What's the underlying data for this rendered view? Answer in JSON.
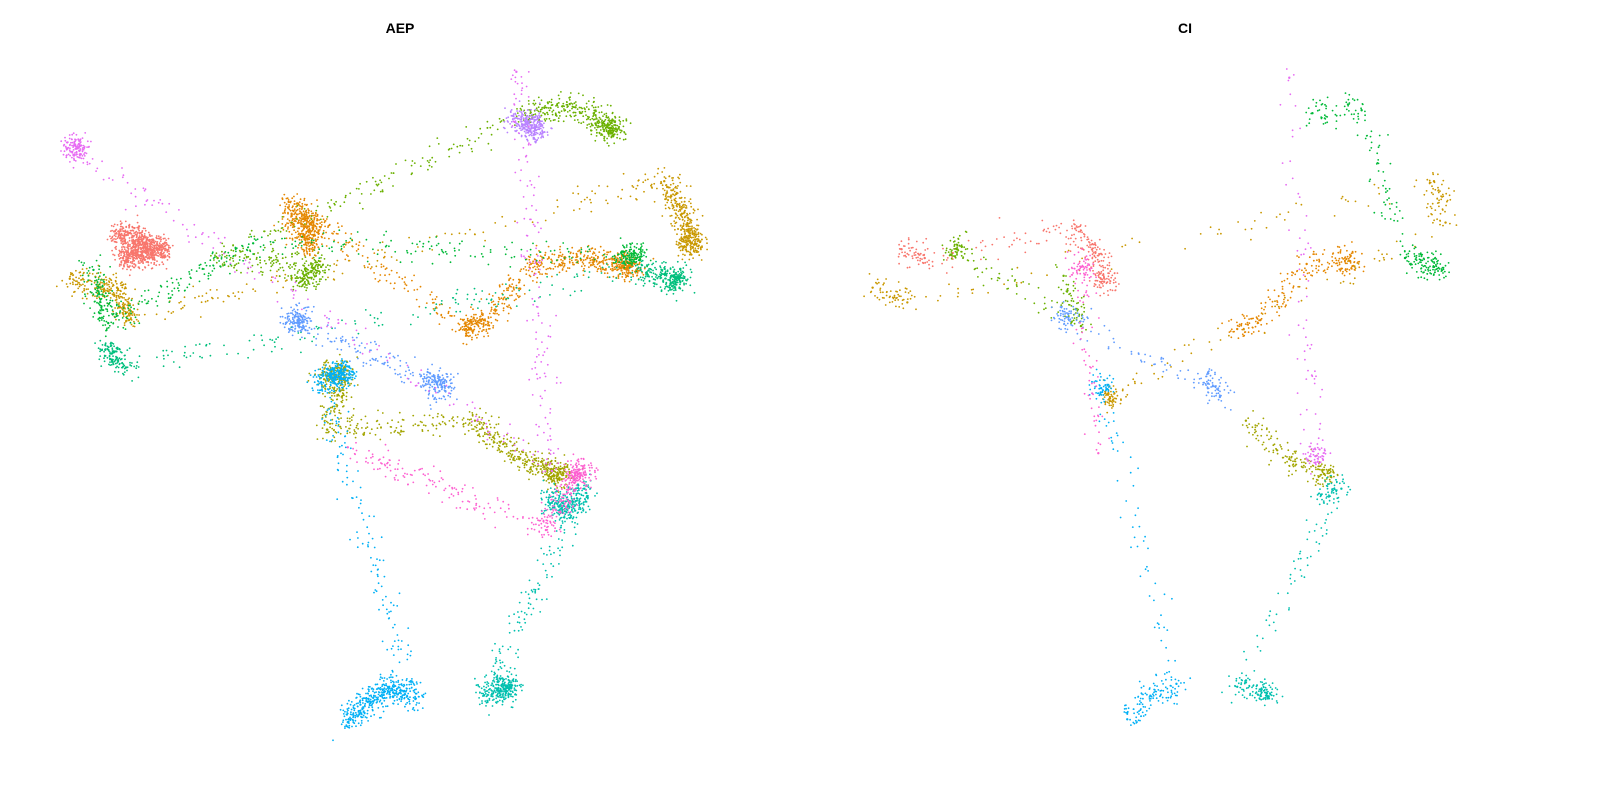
{
  "panels": [
    {
      "title": "AEP"
    },
    {
      "title": "CI"
    }
  ],
  "chart_data": [
    {
      "type": "scatter",
      "title": "AEP",
      "xlabel": "",
      "ylabel": "",
      "axes": "none",
      "grid": false,
      "legend": "none",
      "colors": [
        "#F8766D",
        "#E58700",
        "#C99800",
        "#A3A500",
        "#6BB100",
        "#00BA38",
        "#00BF7D",
        "#00C0AF",
        "#00BCD8",
        "#00B0F6",
        "#619CFF",
        "#B983FF",
        "#E76BF3",
        "#FD61D1"
      ],
      "clusters": [
        {
          "color": "#F8766D",
          "points": [
            [
              -13.5,
              6.2
            ],
            [
              -12.9,
              6.0
            ],
            [
              -12.4,
              5.8
            ],
            [
              -13.2,
              5.3
            ],
            [
              -12.6,
              5.4
            ],
            [
              -12.0,
              5.6
            ]
          ]
        },
        {
          "color": "#E58700",
          "points": [
            [
              -7.5,
              6.8
            ],
            [
              -6.8,
              6.5
            ],
            [
              -6.9,
              5.6
            ],
            [
              -7.6,
              7.2
            ],
            [
              -1.6,
              2.9
            ],
            [
              -1.0,
              3.2
            ],
            [
              0.8,
              5.1
            ],
            [
              2.5,
              5.3
            ],
            [
              3.9,
              5.0
            ]
          ]
        },
        {
          "color": "#C99800",
          "points": [
            [
              -15.0,
              4.6
            ],
            [
              -13.4,
              4.3
            ],
            [
              -13.0,
              3.2
            ],
            [
              5.1,
              7.9
            ],
            [
              5.7,
              6.8
            ],
            [
              6.0,
              5.8
            ]
          ]
        },
        {
          "color": "#A3A500",
          "points": [
            [
              -6.4,
              1.2
            ],
            [
              -5.7,
              1.6
            ],
            [
              -6.3,
              -0.5
            ],
            [
              -1.3,
              -0.2
            ],
            [
              0.2,
              -1.5
            ],
            [
              1.5,
              -2.0
            ]
          ]
        },
        {
          "color": "#6BB100",
          "points": [
            [
              -7.2,
              4.5
            ],
            [
              -6.5,
              5.0
            ],
            [
              -10.0,
              5.3
            ],
            [
              0.4,
              10.2
            ],
            [
              2.1,
              10.4
            ],
            [
              3.3,
              9.7
            ]
          ]
        },
        {
          "color": "#00BA38",
          "points": [
            [
              -14.2,
              4.9
            ],
            [
              -13.7,
              3.1
            ],
            [
              -8.8,
              5.8
            ],
            [
              4.0,
              5.4
            ]
          ]
        },
        {
          "color": "#00BF7D",
          "points": [
            [
              -13.8,
              2.2
            ],
            [
              -13.1,
              1.6
            ],
            [
              4.3,
              4.9
            ],
            [
              5.5,
              4.6
            ]
          ]
        },
        {
          "color": "#00C0AF",
          "points": [
            [
              1.2,
              -2.8
            ],
            [
              1.8,
              -3.3
            ],
            [
              2.4,
              -2.5
            ],
            [
              -1.0,
              -9.5
            ],
            [
              -0.2,
              -9.2
            ]
          ]
        },
        {
          "color": "#00B0F6",
          "points": [
            [
              -5.6,
              -10.4
            ],
            [
              -4.9,
              -9.7
            ],
            [
              -4.2,
              -9.2
            ],
            [
              -3.3,
              -9.6
            ],
            [
              -6.5,
              1.1
            ],
            [
              -5.8,
              1.4
            ]
          ]
        },
        {
          "color": "#619CFF",
          "points": [
            [
              -2.7,
              1.3
            ],
            [
              -2.3,
              0.8
            ],
            [
              -7.3,
              3.2
            ]
          ]
        },
        {
          "color": "#B983FF",
          "points": [
            [
              0.0,
              10.1
            ],
            [
              0.7,
              9.7
            ]
          ]
        },
        {
          "color": "#E76BF3",
          "points": [
            [
              0.1,
              11.6
            ],
            [
              1.3,
              -1.9
            ],
            [
              -14.8,
              9.0
            ]
          ]
        },
        {
          "color": "#FD61D1",
          "points": [
            [
              -5.6,
              -1.1
            ],
            [
              1.1,
              -3.9
            ],
            [
              2.2,
              -2.0
            ]
          ]
        }
      ]
    },
    {
      "type": "scatter",
      "title": "CI",
      "xlabel": "",
      "ylabel": "",
      "axes": "none",
      "grid": false,
      "legend": "none",
      "colors": [
        "#F8766D",
        "#E58700",
        "#C99800",
        "#A3A500",
        "#6BB100",
        "#00BA38",
        "#00BF7D",
        "#00C0AF",
        "#00BCD8",
        "#00B0F6",
        "#619CFF",
        "#B983FF",
        "#E76BF3",
        "#FD61D1"
      ],
      "clusters": [
        {
          "color": "#F8766D",
          "points": [
            [
              -13.2,
              5.6
            ],
            [
              -12.4,
              5.3
            ],
            [
              -7.2,
              6.3
            ],
            [
              -6.5,
              5.5
            ],
            [
              -6.2,
              4.5
            ]
          ]
        },
        {
          "color": "#E58700",
          "points": [
            [
              -1.6,
              2.9
            ],
            [
              -0.8,
              3.2
            ],
            [
              0.8,
              5.1
            ],
            [
              2.3,
              5.2
            ]
          ]
        },
        {
          "color": "#C99800",
          "points": [
            [
              -14.2,
              4.3
            ],
            [
              -13.0,
              3.8
            ],
            [
              5.2,
              7.9
            ],
            [
              5.6,
              6.5
            ],
            [
              -6.0,
              0.6
            ]
          ]
        },
        {
          "color": "#A3A500",
          "points": [
            [
              -1.3,
              -0.2
            ],
            [
              0.2,
              -1.5
            ],
            [
              1.4,
              -2.0
            ]
          ]
        },
        {
          "color": "#6BB100",
          "points": [
            [
              -7.6,
              4.7
            ],
            [
              -7.0,
              3.0
            ],
            [
              -11.3,
              5.6
            ]
          ]
        },
        {
          "color": "#00BA38",
          "points": [
            [
              1.0,
              10.2
            ],
            [
              2.7,
              10.3
            ],
            [
              4.2,
              5.3
            ],
            [
              5.2,
              5.0
            ]
          ]
        },
        {
          "color": "#00C0AF",
          "points": [
            [
              1.3,
              -2.7
            ],
            [
              2.0,
              -2.5
            ],
            [
              -1.6,
              -9.2
            ],
            [
              -0.6,
              -9.4
            ]
          ]
        },
        {
          "color": "#00B0F6",
          "points": [
            [
              -5.4,
              -10.3
            ],
            [
              -4.6,
              -9.5
            ],
            [
              -3.7,
              -9.1
            ],
            [
              -6.3,
              0.9
            ]
          ]
        },
        {
          "color": "#619CFF",
          "points": [
            [
              -2.6,
              1.4
            ],
            [
              -2.2,
              0.6
            ],
            [
              -7.5,
              3.3
            ]
          ]
        },
        {
          "color": "#E76BF3",
          "points": [
            [
              0.2,
              11.4
            ],
            [
              1.1,
              -1.4
            ]
          ]
        },
        {
          "color": "#FD61D1",
          "points": [
            [
              -6.4,
              -1.3
            ],
            [
              -7.0,
              5.0
            ]
          ]
        }
      ]
    }
  ]
}
